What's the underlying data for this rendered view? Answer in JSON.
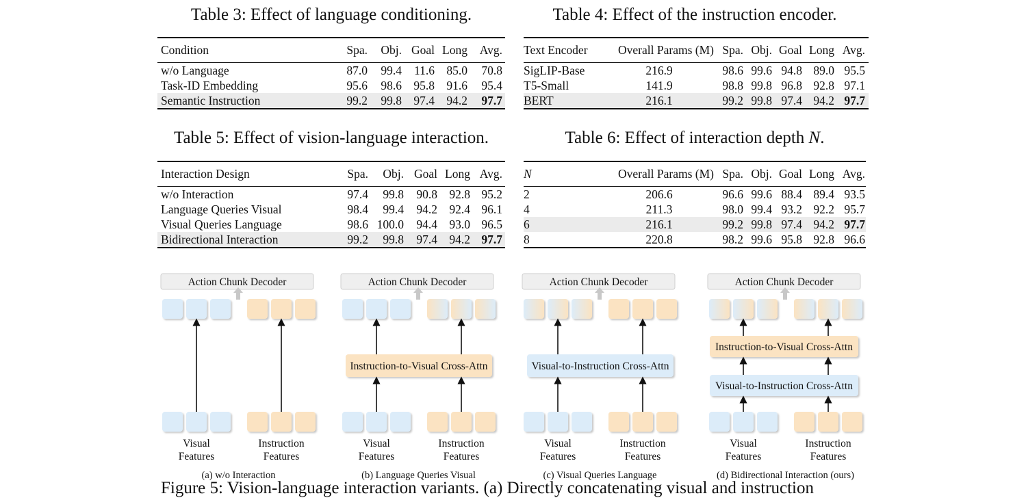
{
  "table3": {
    "caption": "Table 3: Effect of language conditioning.",
    "headers": [
      "Condition",
      "Spa.",
      "Obj.",
      "Goal",
      "Long",
      "Avg."
    ],
    "rows": [
      [
        "w/o Language",
        "87.0",
        "99.4",
        "11.6",
        "85.0",
        "70.8"
      ],
      [
        "Task-ID Embedding",
        "95.6",
        "98.6",
        "95.8",
        "91.6",
        "95.4"
      ],
      [
        "Semantic Instruction",
        "99.2",
        "99.8",
        "97.4",
        "94.2",
        "97.7"
      ]
    ]
  },
  "table4": {
    "caption": "Table 4: Effect of the instruction encoder.",
    "headers": [
      "Text Encoder",
      "Overall Params (M)",
      "Spa.",
      "Obj.",
      "Goal",
      "Long",
      "Avg."
    ],
    "rows": [
      [
        "SigLIP-Base",
        "216.9",
        "98.6",
        "99.6",
        "94.8",
        "89.0",
        "95.5"
      ],
      [
        "T5-Small",
        "141.9",
        "98.8",
        "99.8",
        "96.8",
        "92.8",
        "97.1"
      ],
      [
        "BERT",
        "216.1",
        "99.2",
        "99.8",
        "97.4",
        "94.2",
        "97.7"
      ]
    ]
  },
  "table5": {
    "caption": "Table 5: Effect of vision-language interaction.",
    "headers": [
      "Interaction Design",
      "Spa.",
      "Obj.",
      "Goal",
      "Long",
      "Avg."
    ],
    "rows": [
      [
        "w/o Interaction",
        "97.4",
        "99.8",
        "90.8",
        "92.8",
        "95.2"
      ],
      [
        "Language Queries Visual",
        "98.4",
        "99.4",
        "94.2",
        "92.4",
        "96.1"
      ],
      [
        "Visual Queries Language",
        "98.6",
        "100.0",
        "94.4",
        "93.0",
        "96.5"
      ],
      [
        "Bidirectional Interaction",
        "99.2",
        "99.8",
        "97.4",
        "94.2",
        "97.7"
      ]
    ]
  },
  "table6": {
    "caption_prefix": "Table 6: Effect of interaction depth ",
    "caption_var": "N",
    "caption_suffix": ".",
    "headers": [
      "N",
      "Overall Params (M)",
      "Spa.",
      "Obj.",
      "Goal",
      "Long",
      "Avg."
    ],
    "rows": [
      [
        "2",
        "206.6",
        "96.6",
        "99.6",
        "88.4",
        "89.4",
        "93.5"
      ],
      [
        "4",
        "211.3",
        "98.0",
        "99.4",
        "93.2",
        "92.2",
        "95.7"
      ],
      [
        "6",
        "216.1",
        "99.2",
        "99.8",
        "97.4",
        "94.2",
        "97.7"
      ],
      [
        "8",
        "220.8",
        "98.2",
        "99.6",
        "95.8",
        "92.8",
        "96.6"
      ]
    ]
  },
  "figure": {
    "decoder_label": "Action Chunk Decoder",
    "visual_label_1": "Visual",
    "visual_label_2": "Features",
    "instr_label_1": "Instruction",
    "instr_label_2": "Features",
    "i2v_label": "Instruction-to-Visual Cross-Attn",
    "v2i_label": "Visual-to-Instruction Cross-Attn",
    "panel_captions": [
      "(a) w/o Interaction",
      "(b) Language Queries Visual",
      "(c) Visual Queries Language",
      "(d) Bidirectional Interaction (ours)"
    ],
    "colors": {
      "visual": "#dcecf9",
      "instruction": "#fbe3c2",
      "decoder": "#efefef",
      "arrow_gray": "#c8c8c8"
    }
  },
  "figure_caption": "Figure 5: Vision-language interaction variants. (a) Directly concatenating visual and instruction"
}
